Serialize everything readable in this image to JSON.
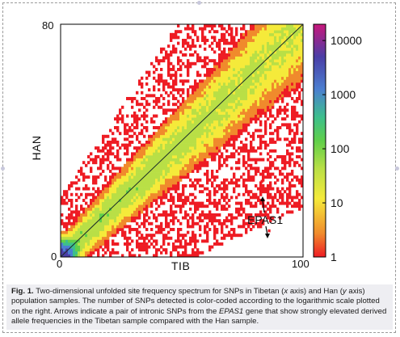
{
  "chart_data": {
    "type": "heatmap",
    "title": "",
    "xlabel": "TIB",
    "ylabel": "HAN",
    "xlim": [
      0,
      100
    ],
    "ylim": [
      0,
      80
    ],
    "x_ticks": [
      "0",
      "100"
    ],
    "y_ticks": [
      "0",
      "80"
    ],
    "diagonal_line": true,
    "colorbar": {
      "scale": "log",
      "range": [
        1,
        20000
      ],
      "tick_labels": [
        "10000",
        "1000",
        "100",
        "10",
        "1"
      ],
      "tick_values": [
        10000,
        1000,
        100,
        10,
        1
      ],
      "colors": [
        "#ee1c24",
        "#f08a2c",
        "#f5ea3a",
        "#b9df46",
        "#5fcf4a",
        "#3dbf8c",
        "#4b7fd0",
        "#4a3ea6",
        "#c8187c"
      ]
    },
    "density_ridge": {
      "description_values": "counts concentrated along y ≈ 0.8·x diagonal band, highest near origin",
      "peak_count_near_origin": 10000,
      "band_count_typical": 100,
      "edge_count": 1
    },
    "annotations": [
      {
        "text": "EPAS1",
        "points": [
          [
            83,
            26
          ],
          [
            86,
            9
          ]
        ]
      }
    ]
  },
  "caption": {
    "fig_label": "Fig. 1.",
    "p1": " Two-dimensional unfolded site frequency spectrum for SNPs in Tibetan (",
    "x_it": "x",
    "p2": " axis) and Han (",
    "y_it": "y",
    "p3": " axis) population samples. The number of SNPs detected is color-coded according to the logarithmic scale plotted on the right. Arrows indicate a pair of intronic SNPs from the ",
    "gene_it": "EPAS1",
    "p4": " gene that show strongly elevated derived allele frequencies in the Tibetan sample compared with the Han sample."
  }
}
